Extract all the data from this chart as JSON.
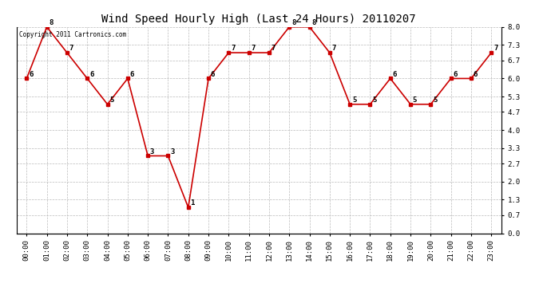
{
  "title": "Wind Speed Hourly High (Last 24 Hours) 20110207",
  "copyright": "Copyright 2011 Cartronics.com",
  "hours": [
    "00:00",
    "01:00",
    "02:00",
    "03:00",
    "04:00",
    "05:00",
    "06:00",
    "07:00",
    "08:00",
    "09:00",
    "10:00",
    "11:00",
    "12:00",
    "13:00",
    "14:00",
    "15:00",
    "16:00",
    "17:00",
    "18:00",
    "19:00",
    "20:00",
    "21:00",
    "22:00",
    "23:00"
  ],
  "values": [
    6,
    8,
    7,
    6,
    5,
    6,
    3,
    3,
    1,
    6,
    7,
    7,
    7,
    8,
    8,
    7,
    5,
    5,
    6,
    5,
    5,
    6,
    6,
    7
  ],
  "ylim": [
    0.0,
    8.0
  ],
  "yticks": [
    0.0,
    0.7,
    1.3,
    2.0,
    2.7,
    3.3,
    4.0,
    4.7,
    5.3,
    6.0,
    6.7,
    7.3,
    8.0
  ],
  "line_color": "#cc0000",
  "marker_color": "#cc0000",
  "bg_color": "#ffffff",
  "grid_color": "#bbbbbb",
  "title_fontsize": 10,
  "label_fontsize": 6.5,
  "annotation_fontsize": 6.5
}
